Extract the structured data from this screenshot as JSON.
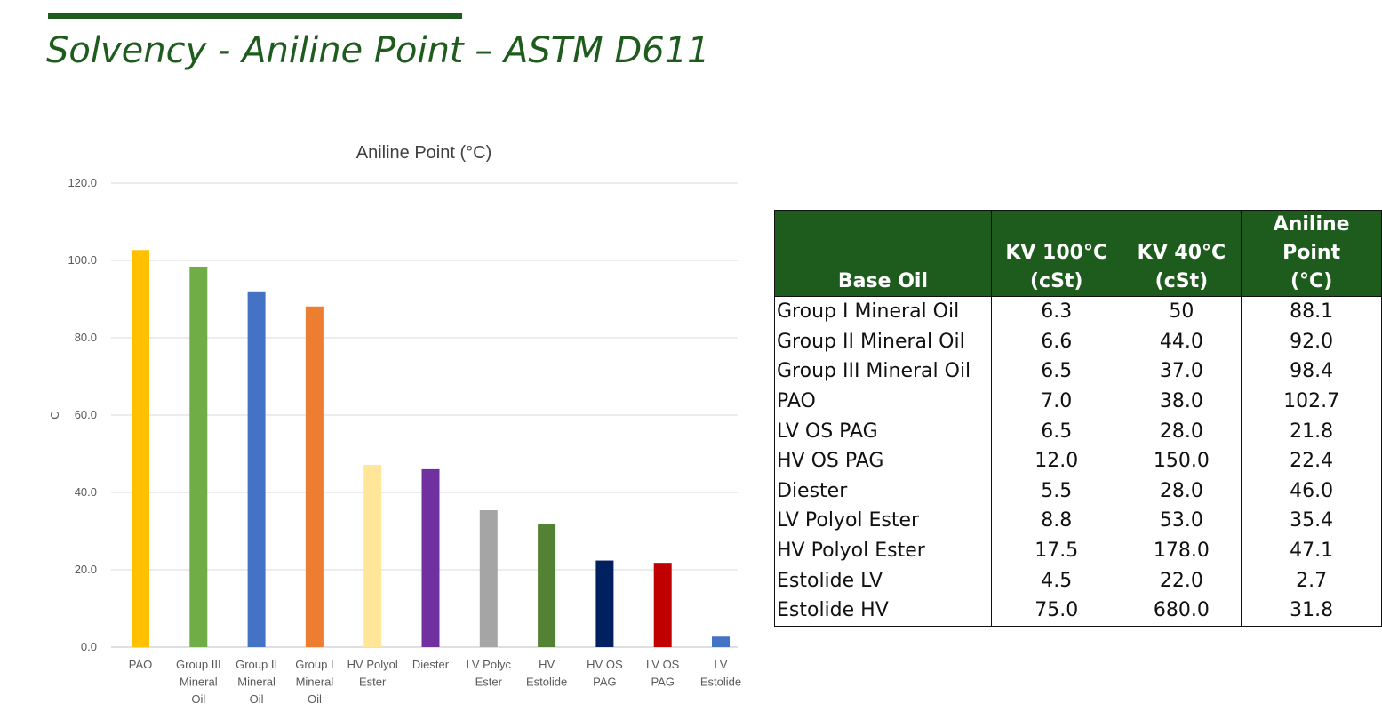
{
  "slide": {
    "title": "Solvency - Aniline Point – ASTM D611"
  },
  "chart_data": {
    "type": "bar",
    "title": "Aniline Point (°C)",
    "ylabel": "C",
    "xlabel": "",
    "ylim": [
      0,
      120
    ],
    "yticks": [
      "0.0",
      "20.0",
      "40.0",
      "60.0",
      "80.0",
      "100.0",
      "120.0"
    ],
    "grid": true,
    "categories": [
      [
        "PAO"
      ],
      [
        "Group III",
        "Mineral",
        "Oil"
      ],
      [
        "Group II",
        "Mineral",
        "Oil"
      ],
      [
        "Group I",
        "Mineral",
        "Oil"
      ],
      [
        "HV Polyol",
        "Ester"
      ],
      [
        "Diester"
      ],
      [
        "LV Polyc",
        "Ester"
      ],
      [
        "HV",
        "Estolide"
      ],
      [
        "HV  OS",
        "PAG"
      ],
      [
        "LV OS",
        "PAG"
      ],
      [
        "LV",
        "Estolide"
      ]
    ],
    "values": [
      102.7,
      98.4,
      92.0,
      88.1,
      47.1,
      46.0,
      35.4,
      31.8,
      22.4,
      21.8,
      2.7
    ],
    "colors": [
      "#ffc000",
      "#70ad47",
      "#4472c4",
      "#ed7d31",
      "#ffe699",
      "#7030a0",
      "#a5a5a5",
      "#548235",
      "#002060",
      "#c00000",
      "#4472c4"
    ]
  },
  "table": {
    "headers": [
      [
        "Base Oil"
      ],
      [
        "KV 100°C",
        "(cSt)"
      ],
      [
        "KV 40°C",
        "(cSt)"
      ],
      [
        "Aniline Point",
        "(°C)"
      ]
    ],
    "rows": [
      [
        "Group I Mineral Oil",
        "6.3",
        "50",
        "88.1"
      ],
      [
        "Group II Mineral Oil",
        "6.6",
        "44.0",
        "92.0"
      ],
      [
        "Group III Mineral Oil",
        "6.5",
        "37.0",
        "98.4"
      ],
      [
        "PAO",
        "7.0",
        "38.0",
        "102.7"
      ],
      [
        "LV OS PAG",
        "6.5",
        "28.0",
        "21.8"
      ],
      [
        "HV  OS PAG",
        "12.0",
        "150.0",
        "22.4"
      ],
      [
        "Diester",
        "5.5",
        "28.0",
        "46.0"
      ],
      [
        "LV Polyol Ester",
        "8.8",
        "53.0",
        "35.4"
      ],
      [
        "HV Polyol Ester",
        "17.5",
        "178.0",
        "47.1"
      ],
      [
        "Estolide LV",
        "4.5",
        "22.0",
        "2.7"
      ],
      [
        "Estolide HV",
        "75.0",
        "680.0",
        "31.8"
      ]
    ]
  },
  "colors": {
    "brand_green": "#1e5c1e",
    "gridline": "#d9d9d9",
    "axis_text": "#595959"
  }
}
